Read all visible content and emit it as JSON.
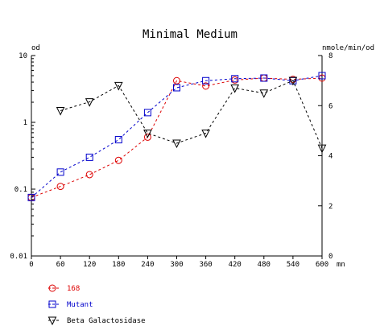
{
  "chart_data": {
    "type": "line",
    "title": "Minimal Medium",
    "x": [
      0,
      60,
      120,
      180,
      240,
      300,
      360,
      420,
      480,
      540,
      600
    ],
    "xticks": [
      "0",
      "60",
      "120",
      "180",
      "240",
      "300",
      "360",
      "420",
      "480",
      "540",
      "600"
    ],
    "xunit": "mn",
    "xlim": [
      0,
      600
    ],
    "y_left": {
      "label": "od",
      "scale": "log",
      "lim": [
        0.01,
        10
      ],
      "ticks": [
        "0.01",
        "0.1",
        "1",
        "10"
      ],
      "tick_values": [
        0.01,
        0.1,
        1,
        10
      ]
    },
    "y_right": {
      "label": "nmole/min/od",
      "scale": "linear",
      "lim": [
        0,
        8
      ],
      "ticks": [
        "0",
        "2",
        "4",
        "6",
        "8"
      ],
      "tick_values": [
        0,
        2,
        4,
        6,
        8
      ]
    },
    "grid": false,
    "legend_position": "bottom-left",
    "series": [
      {
        "name": "168",
        "axis": "left",
        "color": "#dd0000",
        "marker": "circle",
        "x": [
          0,
          60,
          120,
          180,
          240,
          300,
          360,
          420,
          480,
          540,
          600
        ],
        "values": [
          0.075,
          0.11,
          0.165,
          0.27,
          0.6,
          4.2,
          3.5,
          4.3,
          4.6,
          4.4,
          4.6
        ]
      },
      {
        "name": "Mutant",
        "axis": "left",
        "color": "#0000cc",
        "marker": "square",
        "x": [
          0,
          60,
          120,
          180,
          240,
          300,
          360,
          420,
          480,
          540,
          600
        ],
        "values": [
          0.075,
          0.18,
          0.3,
          0.55,
          1.4,
          3.3,
          4.2,
          4.5,
          4.6,
          4.2,
          5.0
        ]
      },
      {
        "name": "Beta Galactosidase",
        "axis": "right",
        "color": "#000000",
        "marker": "triangle-down",
        "x": [
          60,
          120,
          180,
          240,
          300,
          360,
          420,
          480,
          540,
          600
        ],
        "values": [
          5.8,
          6.15,
          6.8,
          4.9,
          4.5,
          4.9,
          6.7,
          6.5,
          7.0,
          4.3
        ]
      }
    ]
  }
}
